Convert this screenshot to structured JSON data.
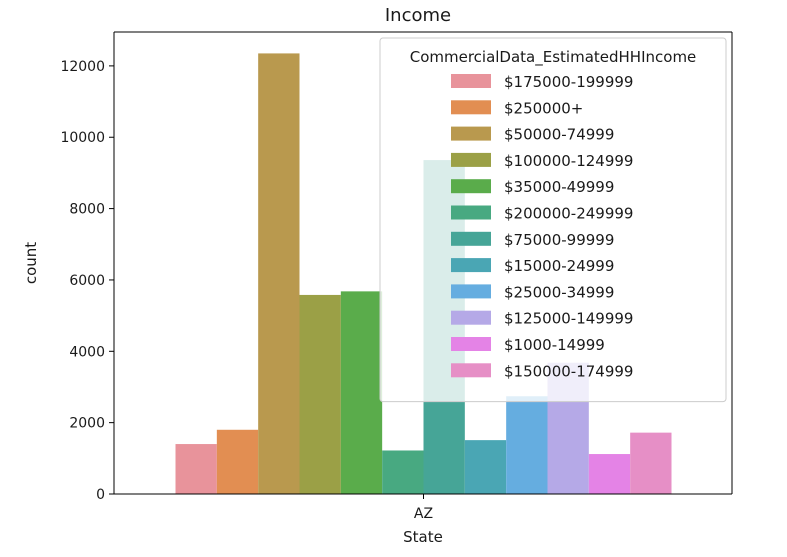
{
  "chart_data": {
    "type": "bar",
    "title": "Income",
    "xlabel": "State",
    "ylabel": "count",
    "categories": [
      "AZ"
    ],
    "ylim": [
      0,
      12950
    ],
    "yticks": [
      0,
      2000,
      4000,
      6000,
      8000,
      10000,
      12000
    ],
    "ytick_labels": [
      "0",
      "2000",
      "4000",
      "6000",
      "8000",
      "10000",
      "12000"
    ],
    "grid": false,
    "legend": {
      "title": "CommercialData_EstimatedHHIncome",
      "placement": "top-right"
    },
    "series": [
      {
        "name": "$175000-199999",
        "values": [
          1400
        ],
        "color": "#e8939b"
      },
      {
        "name": "$250000+",
        "values": [
          1800
        ],
        "color": "#e28e52"
      },
      {
        "name": "$50000-74999",
        "values": [
          12350
        ],
        "color": "#b9994e"
      },
      {
        "name": "$100000-124999",
        "values": [
          5580
        ],
        "color": "#9ba046"
      },
      {
        "name": "$35000-49999",
        "values": [
          5680
        ],
        "color": "#5aac4b"
      },
      {
        "name": "$200000-249999",
        "values": [
          1220
        ],
        "color": "#48a981"
      },
      {
        "name": "$75000-99999",
        "values": [
          9360
        ],
        "color": "#46a597"
      },
      {
        "name": "$15000-24999",
        "values": [
          1510
        ],
        "color": "#4aa6b4"
      },
      {
        "name": "$25000-34999",
        "values": [
          2740
        ],
        "color": "#65ade0"
      },
      {
        "name": "$125000-149999",
        "values": [
          3680
        ],
        "color": "#b5a9e7"
      },
      {
        "name": "$1000-14999",
        "values": [
          1120
        ],
        "color": "#e483e6"
      },
      {
        "name": "$150000-174999",
        "values": [
          1720
        ],
        "color": "#e68fc6"
      }
    ]
  }
}
